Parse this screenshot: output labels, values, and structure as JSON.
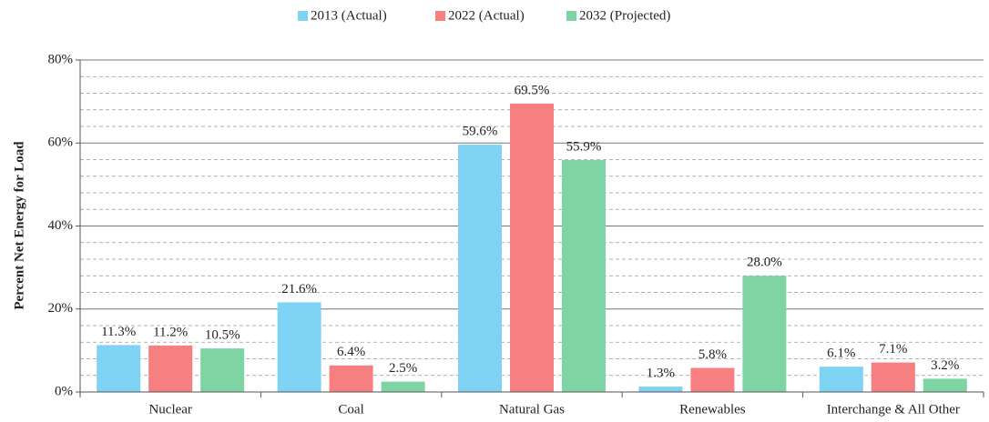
{
  "chart_data": {
    "type": "bar",
    "y_label": "Percent Net Energy for Load",
    "categories": [
      "Nuclear",
      "Coal",
      "Natural Gas",
      "Renewables",
      "Interchange & All Other"
    ],
    "series": [
      {
        "name": "2013 (Actual)",
        "color": "#7fd3f2",
        "values": [
          11.3,
          21.6,
          59.6,
          1.3,
          6.1
        ],
        "value_labels": [
          "11.3%",
          "21.6%",
          "59.6%",
          "1.3%",
          "6.1%"
        ]
      },
      {
        "name": "2022 (Actual)",
        "color": "#f77f7f",
        "values": [
          11.2,
          6.4,
          69.5,
          5.8,
          7.1
        ],
        "value_labels": [
          "11.2%",
          "6.4%",
          "69.5%",
          "5.8%",
          "7.1%"
        ]
      },
      {
        "name": "2032 (Projected)",
        "color": "#7fd4a3",
        "values": [
          10.5,
          2.5,
          55.9,
          28.0,
          3.2
        ],
        "value_labels": [
          "10.5%",
          "2.5%",
          "55.9%",
          "28.0%",
          "3.2%"
        ]
      }
    ],
    "ylim": [
      0,
      80
    ],
    "yticks": [
      {
        "value": 0,
        "label": "0%"
      },
      {
        "value": 20,
        "label": "20%"
      },
      {
        "value": 40,
        "label": "40%"
      },
      {
        "value": 60,
        "label": "60%"
      },
      {
        "value": 80,
        "label": "80%"
      }
    ],
    "yminorticks": [
      4,
      8,
      12,
      16,
      24,
      28,
      32,
      36,
      44,
      48,
      52,
      56,
      64,
      68,
      72,
      76
    ],
    "grid": true,
    "legend": "top"
  }
}
